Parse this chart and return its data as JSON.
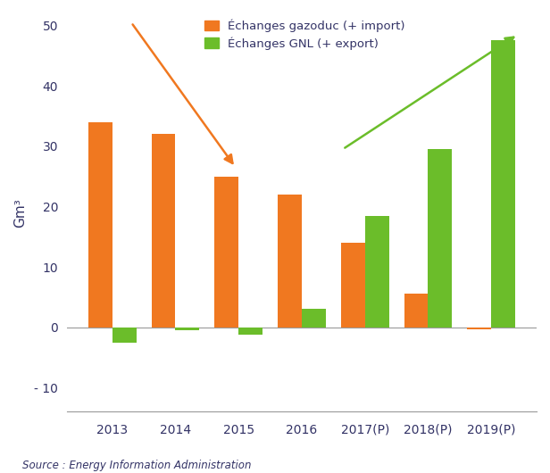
{
  "categories": [
    "2013",
    "2014",
    "2015",
    "2016",
    "2017(P)",
    "2018(P)",
    "2019(P)"
  ],
  "gazoduc": [
    34,
    32,
    25,
    22,
    14,
    5.5,
    -0.3
  ],
  "gnl": [
    -2.5,
    -0.5,
    -1.2,
    3,
    18.5,
    29.5,
    47.5
  ],
  "gazoduc_color": "#F07820",
  "gnl_color": "#6BBD2A",
  "ylabel": "Gm³",
  "ylim": [
    -14,
    52
  ],
  "yticks": [
    -10,
    0,
    10,
    20,
    30,
    40,
    50
  ],
  "yticklabels": [
    "- 10",
    "0",
    "10",
    "20",
    "30",
    "40",
    "50"
  ],
  "legend_gazoduc": "Échanges gazoduc (+ import)",
  "legend_gnl": "Échanges GNL (+ export)",
  "source": "Source : Energy Information Administration",
  "background_color": "#ffffff",
  "bar_width": 0.38
}
